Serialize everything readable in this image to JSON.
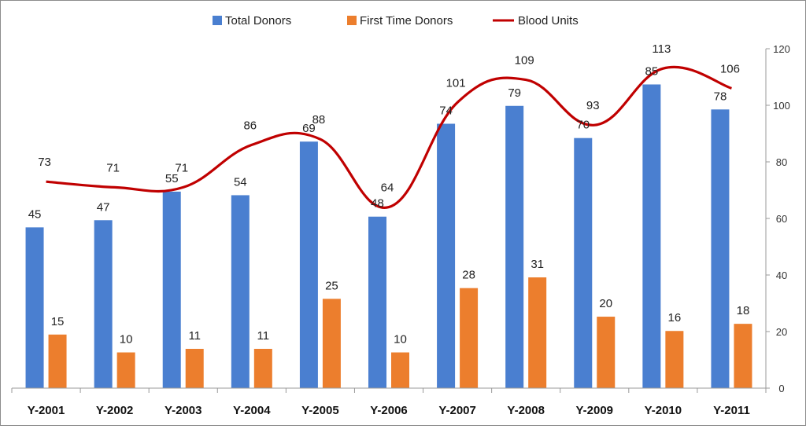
{
  "chart_data": {
    "type": "bar",
    "categories": [
      "Y-2001",
      "Y-2002",
      "Y-2003",
      "Y-2004",
      "Y-2005",
      "Y-2006",
      "Y-2007",
      "Y-2008",
      "Y-2009",
      "Y-2010",
      "Y-2011"
    ],
    "series": [
      {
        "name": "Total Donors",
        "type": "bar",
        "axis": "left",
        "color": "#4a7fd0",
        "values": [
          45,
          47,
          55,
          54,
          69,
          48,
          74,
          79,
          70,
          85,
          78
        ]
      },
      {
        "name": "First Time Donors",
        "type": "bar",
        "axis": "left",
        "color": "#ec7e2d",
        "values": [
          15,
          10,
          11,
          11,
          25,
          10,
          28,
          31,
          20,
          16,
          18
        ]
      },
      {
        "name": "Blood Units",
        "type": "line",
        "axis": "right",
        "color": "#c00000",
        "values": [
          73,
          71,
          71,
          86,
          88,
          64,
          101,
          109,
          93,
          113,
          106
        ]
      }
    ],
    "y_left_range": [
      0,
      95
    ],
    "y_right": {
      "min": 0,
      "max": 120,
      "ticks": [
        "0",
        "20",
        "40",
        "60",
        "80",
        "100",
        "120"
      ]
    },
    "grid": false,
    "legend": "top-center"
  }
}
